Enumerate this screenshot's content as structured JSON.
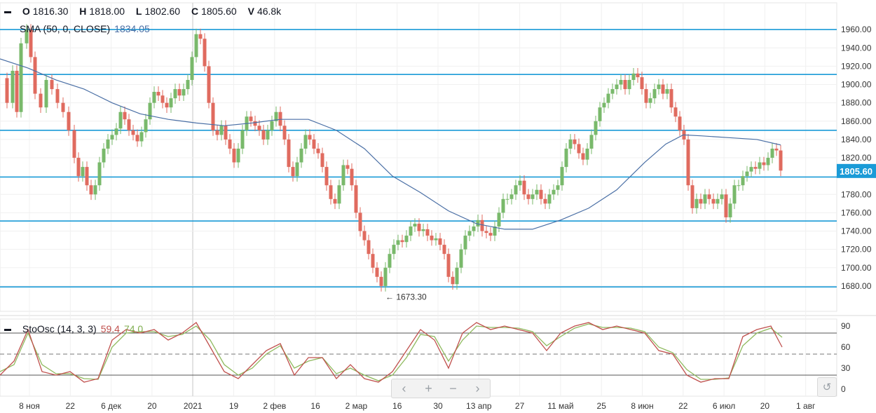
{
  "header": {
    "ohlc": [
      {
        "key": "O",
        "value": "1816.30"
      },
      {
        "key": "H",
        "value": "1818.00"
      },
      {
        "key": "L",
        "value": "1802.60"
      },
      {
        "key": "C",
        "value": "1805.60"
      },
      {
        "key": "V",
        "value": "46.8k"
      }
    ],
    "sma_label": "SMA (50, 0, CLOSE)",
    "sma_value": "1834.05",
    "sto_label": "StoOsc (14, 3, 3)",
    "sto_k_value": "59.4",
    "sto_d_value": "74.0"
  },
  "navigation": {
    "prev": "‹",
    "zoom_in": "+",
    "zoom_out": "−",
    "next": "›",
    "reset": "↺"
  },
  "colors": {
    "up": "#79b96b",
    "down": "#e06b5f",
    "sma": "#4a6fa5",
    "hline": "#1a9bd7",
    "k": "#c0504d",
    "d": "#8fba5f",
    "price_tag": "#1a9bd7"
  },
  "chart_data": [
    {
      "type": "candlestick",
      "ylim": [
        1660,
        1975
      ],
      "yticks": [
        1680,
        1700,
        1720,
        1740,
        1760,
        1780,
        1820,
        1840,
        1860,
        1880,
        1900,
        1920,
        1940,
        1960
      ],
      "xticks": [
        "8 ноя",
        "22",
        "6 дек",
        "20",
        "2021",
        "19",
        "2 фев",
        "16",
        "2 мар",
        "16",
        "30",
        "13 апр",
        "27",
        "11 май",
        "25",
        "8 июн",
        "22",
        "6 июл",
        "20",
        "1 авг"
      ],
      "horizontal_levels": [
        1960,
        1911,
        1850,
        1799,
        1751,
        1679
      ],
      "last_price": "1805.60",
      "min_annotation": {
        "label": "← 1673.30",
        "value": 1673.3
      },
      "close_path": [
        [
          0,
          1907
        ],
        [
          10,
          1880
        ],
        [
          18,
          1915
        ],
        [
          24,
          1870
        ],
        [
          30,
          1945
        ],
        [
          38,
          1960
        ],
        [
          44,
          1930
        ],
        [
          50,
          1890
        ],
        [
          58,
          1875
        ],
        [
          66,
          1905
        ],
        [
          74,
          1895
        ],
        [
          82,
          1880
        ],
        [
          90,
          1870
        ],
        [
          98,
          1850
        ],
        [
          106,
          1820
        ],
        [
          112,
          1800
        ],
        [
          118,
          1810
        ],
        [
          124,
          1790
        ],
        [
          130,
          1780
        ],
        [
          136,
          1790
        ],
        [
          142,
          1815
        ],
        [
          148,
          1830
        ],
        [
          154,
          1840
        ],
        [
          160,
          1845
        ],
        [
          166,
          1852
        ],
        [
          172,
          1870
        ],
        [
          178,
          1862
        ],
        [
          184,
          1850
        ],
        [
          190,
          1845
        ],
        [
          196,
          1838
        ],
        [
          202,
          1848
        ],
        [
          208,
          1862
        ],
        [
          214,
          1880
        ],
        [
          220,
          1892
        ],
        [
          226,
          1888
        ],
        [
          232,
          1880
        ],
        [
          238,
          1875
        ],
        [
          244,
          1885
        ],
        [
          250,
          1895
        ],
        [
          256,
          1888
        ],
        [
          262,
          1895
        ],
        [
          268,
          1905
        ],
        [
          274,
          1930
        ],
        [
          280,
          1955
        ],
        [
          286,
          1950
        ],
        [
          292,
          1920
        ],
        [
          298,
          1880
        ],
        [
          304,
          1850
        ],
        [
          310,
          1845
        ],
        [
          316,
          1855
        ],
        [
          322,
          1840
        ],
        [
          328,
          1830
        ],
        [
          334,
          1815
        ],
        [
          340,
          1830
        ],
        [
          346,
          1850
        ],
        [
          352,
          1865
        ],
        [
          358,
          1860
        ],
        [
          364,
          1855
        ],
        [
          370,
          1850
        ],
        [
          376,
          1840
        ],
        [
          382,
          1850
        ],
        [
          388,
          1860
        ],
        [
          394,
          1870
        ],
        [
          400,
          1855
        ],
        [
          406,
          1840
        ],
        [
          412,
          1810
        ],
        [
          418,
          1800
        ],
        [
          424,
          1815
        ],
        [
          430,
          1830
        ],
        [
          436,
          1845
        ],
        [
          442,
          1840
        ],
        [
          448,
          1830
        ],
        [
          454,
          1825
        ],
        [
          460,
          1810
        ],
        [
          466,
          1790
        ],
        [
          472,
          1775
        ],
        [
          478,
          1770
        ],
        [
          484,
          1790
        ],
        [
          490,
          1812
        ],
        [
          496,
          1808
        ],
        [
          502,
          1790
        ],
        [
          508,
          1760
        ],
        [
          514,
          1740
        ],
        [
          520,
          1730
        ],
        [
          526,
          1715
        ],
        [
          532,
          1700
        ],
        [
          538,
          1690
        ],
        [
          544,
          1680
        ],
        [
          550,
          1700
        ],
        [
          556,
          1715
        ],
        [
          562,
          1725
        ],
        [
          568,
          1730
        ],
        [
          574,
          1728
        ],
        [
          580,
          1735
        ],
        [
          586,
          1745
        ],
        [
          592,
          1748
        ],
        [
          598,
          1740
        ],
        [
          604,
          1742
        ],
        [
          610,
          1735
        ],
        [
          616,
          1730
        ],
        [
          622,
          1732
        ],
        [
          628,
          1725
        ],
        [
          634,
          1715
        ],
        [
          640,
          1690
        ],
        [
          646,
          1682
        ],
        [
          652,
          1700
        ],
        [
          658,
          1720
        ],
        [
          664,
          1735
        ],
        [
          670,
          1740
        ],
        [
          676,
          1745
        ],
        [
          682,
          1752
        ],
        [
          688,
          1740
        ],
        [
          694,
          1738
        ],
        [
          700,
          1735
        ],
        [
          706,
          1745
        ],
        [
          712,
          1760
        ],
        [
          718,
          1775
        ],
        [
          724,
          1775
        ],
        [
          730,
          1780
        ],
        [
          736,
          1790
        ],
        [
          742,
          1795
        ],
        [
          748,
          1780
        ],
        [
          754,
          1775
        ],
        [
          760,
          1780
        ],
        [
          766,
          1785
        ],
        [
          772,
          1775
        ],
        [
          778,
          1770
        ],
        [
          784,
          1780
        ],
        [
          790,
          1785
        ],
        [
          796,
          1790
        ],
        [
          802,
          1810
        ],
        [
          808,
          1830
        ],
        [
          814,
          1840
        ],
        [
          820,
          1835
        ],
        [
          826,
          1825
        ],
        [
          832,
          1818
        ],
        [
          838,
          1830
        ],
        [
          844,
          1845
        ],
        [
          850,
          1860
        ],
        [
          856,
          1875
        ],
        [
          862,
          1880
        ],
        [
          868,
          1890
        ],
        [
          874,
          1895
        ],
        [
          880,
          1900
        ],
        [
          886,
          1905
        ],
        [
          892,
          1895
        ],
        [
          898,
          1905
        ],
        [
          904,
          1912
        ],
        [
          910,
          1908
        ],
        [
          916,
          1895
        ],
        [
          922,
          1880
        ],
        [
          928,
          1885
        ],
        [
          934,
          1895
        ],
        [
          940,
          1900
        ],
        [
          946,
          1890
        ],
        [
          952,
          1895
        ],
        [
          958,
          1875
        ],
        [
          964,
          1865
        ],
        [
          970,
          1850
        ],
        [
          976,
          1840
        ],
        [
          982,
          1790
        ],
        [
          988,
          1765
        ],
        [
          994,
          1775
        ],
        [
          1000,
          1770
        ],
        [
          1006,
          1780
        ],
        [
          1012,
          1775
        ],
        [
          1018,
          1770
        ],
        [
          1024,
          1775
        ],
        [
          1030,
          1780
        ],
        [
          1036,
          1755
        ],
        [
          1042,
          1770
        ],
        [
          1048,
          1790
        ],
        [
          1054,
          1790
        ],
        [
          1060,
          1800
        ],
        [
          1066,
          1805
        ],
        [
          1072,
          1810
        ],
        [
          1078,
          1808
        ],
        [
          1084,
          1815
        ],
        [
          1090,
          1812
        ],
        [
          1096,
          1820
        ],
        [
          1102,
          1830
        ],
        [
          1108,
          1828
        ],
        [
          1114,
          1806
        ]
      ]
    },
    {
      "type": "line",
      "name": "SMA (50, 0, CLOSE)",
      "points": [
        [
          0,
          1928
        ],
        [
          40,
          1918
        ],
        [
          80,
          1905
        ],
        [
          120,
          1895
        ],
        [
          160,
          1880
        ],
        [
          200,
          1868
        ],
        [
          240,
          1862
        ],
        [
          280,
          1858
        ],
        [
          320,
          1855
        ],
        [
          360,
          1858
        ],
        [
          400,
          1862
        ],
        [
          440,
          1862
        ],
        [
          480,
          1850
        ],
        [
          520,
          1830
        ],
        [
          560,
          1800
        ],
        [
          600,
          1782
        ],
        [
          640,
          1762
        ],
        [
          680,
          1748
        ],
        [
          720,
          1742
        ],
        [
          760,
          1742
        ],
        [
          800,
          1752
        ],
        [
          840,
          1765
        ],
        [
          880,
          1785
        ],
        [
          920,
          1815
        ],
        [
          950,
          1835
        ],
        [
          975,
          1845
        ],
        [
          1000,
          1844
        ],
        [
          1040,
          1842
        ],
        [
          1080,
          1840
        ],
        [
          1114,
          1834
        ]
      ]
    },
    {
      "type": "line",
      "name": "StoOsc (14, 3, 3)",
      "ylim": [
        -10,
        100
      ],
      "yticks": [
        0,
        30,
        60,
        90
      ],
      "levels": [
        80,
        20
      ],
      "midline": 50,
      "k_points": [
        [
          0,
          20
        ],
        [
          20,
          40
        ],
        [
          40,
          85
        ],
        [
          60,
          25
        ],
        [
          80,
          20
        ],
        [
          100,
          25
        ],
        [
          120,
          10
        ],
        [
          140,
          15
        ],
        [
          160,
          70
        ],
        [
          180,
          85
        ],
        [
          200,
          80
        ],
        [
          220,
          85
        ],
        [
          240,
          70
        ],
        [
          260,
          80
        ],
        [
          280,
          95
        ],
        [
          300,
          60
        ],
        [
          320,
          25
        ],
        [
          340,
          15
        ],
        [
          360,
          35
        ],
        [
          380,
          55
        ],
        [
          400,
          65
        ],
        [
          420,
          20
        ],
        [
          440,
          45
        ],
        [
          460,
          45
        ],
        [
          480,
          15
        ],
        [
          500,
          35
        ],
        [
          520,
          15
        ],
        [
          540,
          10
        ],
        [
          560,
          25
        ],
        [
          580,
          55
        ],
        [
          600,
          85
        ],
        [
          620,
          70
        ],
        [
          640,
          30
        ],
        [
          660,
          80
        ],
        [
          680,
          95
        ],
        [
          700,
          85
        ],
        [
          720,
          90
        ],
        [
          740,
          85
        ],
        [
          760,
          80
        ],
        [
          780,
          55
        ],
        [
          800,
          80
        ],
        [
          820,
          90
        ],
        [
          840,
          95
        ],
        [
          860,
          85
        ],
        [
          880,
          90
        ],
        [
          900,
          85
        ],
        [
          920,
          80
        ],
        [
          940,
          55
        ],
        [
          960,
          50
        ],
        [
          980,
          20
        ],
        [
          1000,
          10
        ],
        [
          1020,
          15
        ],
        [
          1040,
          15
        ],
        [
          1060,
          75
        ],
        [
          1080,
          85
        ],
        [
          1100,
          90
        ],
        [
          1116,
          60
        ]
      ],
      "d_points": [
        [
          0,
          25
        ],
        [
          20,
          35
        ],
        [
          40,
          80
        ],
        [
          60,
          35
        ],
        [
          80,
          22
        ],
        [
          100,
          22
        ],
        [
          120,
          15
        ],
        [
          140,
          14
        ],
        [
          160,
          60
        ],
        [
          180,
          80
        ],
        [
          200,
          82
        ],
        [
          220,
          82
        ],
        [
          240,
          75
        ],
        [
          260,
          78
        ],
        [
          280,
          90
        ],
        [
          300,
          70
        ],
        [
          320,
          35
        ],
        [
          340,
          20
        ],
        [
          360,
          30
        ],
        [
          380,
          50
        ],
        [
          400,
          62
        ],
        [
          420,
          30
        ],
        [
          440,
          40
        ],
        [
          460,
          45
        ],
        [
          480,
          22
        ],
        [
          500,
          30
        ],
        [
          520,
          20
        ],
        [
          540,
          12
        ],
        [
          560,
          20
        ],
        [
          580,
          45
        ],
        [
          600,
          78
        ],
        [
          620,
          75
        ],
        [
          640,
          40
        ],
        [
          660,
          70
        ],
        [
          680,
          90
        ],
        [
          700,
          88
        ],
        [
          720,
          88
        ],
        [
          740,
          87
        ],
        [
          760,
          82
        ],
        [
          780,
          62
        ],
        [
          800,
          75
        ],
        [
          820,
          87
        ],
        [
          840,
          93
        ],
        [
          860,
          88
        ],
        [
          880,
          88
        ],
        [
          900,
          87
        ],
        [
          920,
          82
        ],
        [
          940,
          60
        ],
        [
          960,
          52
        ],
        [
          980,
          28
        ],
        [
          1000,
          14
        ],
        [
          1020,
          14
        ],
        [
          1040,
          16
        ],
        [
          1060,
          62
        ],
        [
          1080,
          80
        ],
        [
          1100,
          87
        ],
        [
          1116,
          74
        ]
      ]
    }
  ]
}
